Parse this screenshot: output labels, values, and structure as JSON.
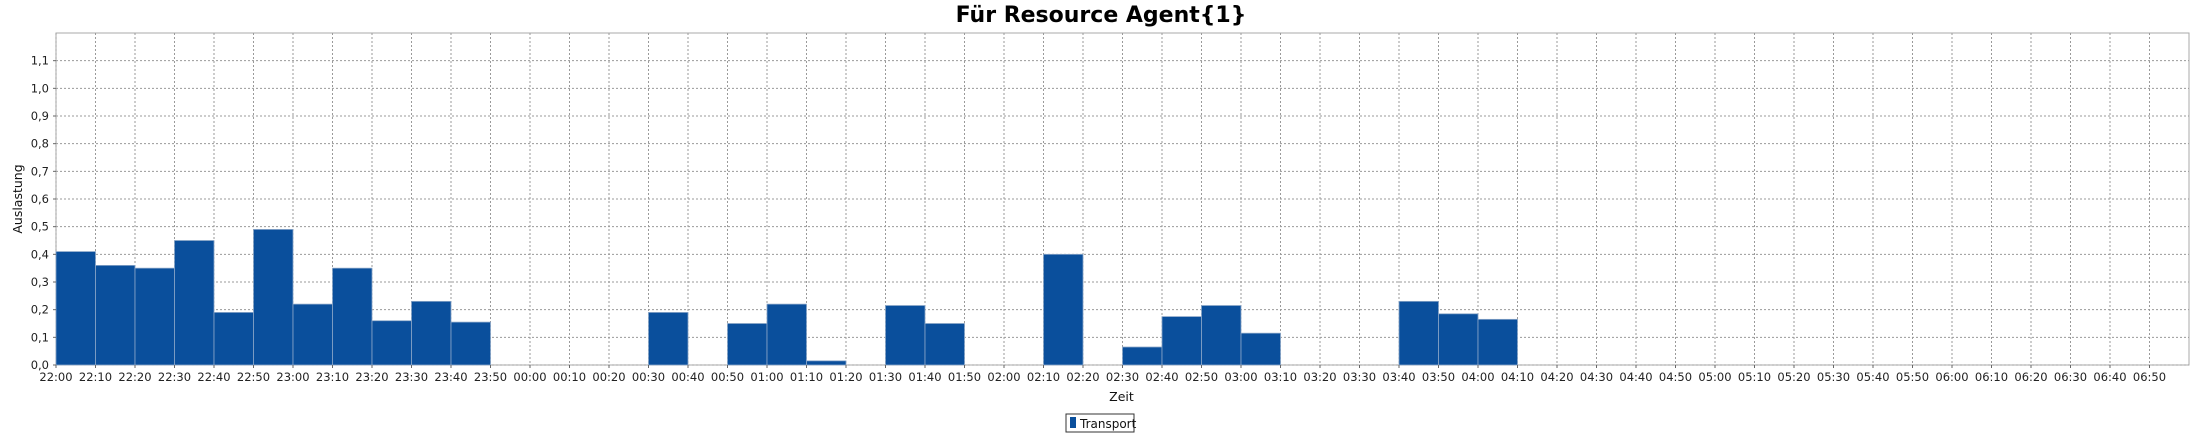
{
  "chart_data": {
    "type": "bar",
    "title": "Für Resource Agent{1}",
    "xlabel": "Zeit",
    "ylabel": "Auslastung",
    "ylim": [
      0,
      1.2
    ],
    "yticks": [
      "0,0",
      "0,1",
      "0,2",
      "0,3",
      "0,4",
      "0,5",
      "0,6",
      "0,7",
      "0,8",
      "0,9",
      "1,0",
      "1,1"
    ],
    "categories": [
      "22:00",
      "22:10",
      "22:20",
      "22:30",
      "22:40",
      "22:50",
      "23:00",
      "23:10",
      "23:20",
      "23:30",
      "23:40",
      "23:50",
      "00:00",
      "00:10",
      "00:20",
      "00:30",
      "00:40",
      "00:50",
      "01:00",
      "01:10",
      "01:20",
      "01:30",
      "01:40",
      "01:50",
      "02:00",
      "02:10",
      "02:20",
      "02:30",
      "02:40",
      "02:50",
      "03:00",
      "03:10",
      "03:20",
      "03:30",
      "03:40",
      "03:50",
      "04:00",
      "04:10",
      "04:20",
      "04:30",
      "04:40",
      "04:50",
      "05:00",
      "05:10",
      "05:20",
      "05:30",
      "05:40",
      "05:50",
      "06:00",
      "06:10",
      "06:20",
      "06:30",
      "06:40",
      "06:50"
    ],
    "series": [
      {
        "name": "Transport",
        "color": "#0a4f9c",
        "values": [
          0.41,
          0.36,
          0.35,
          0.45,
          0.19,
          0.49,
          0.22,
          0.35,
          0.16,
          0.23,
          0.155,
          0,
          0,
          0,
          0,
          0.19,
          0,
          0.15,
          0.22,
          0.015,
          0,
          0.215,
          0.15,
          0,
          0,
          0.4,
          0,
          0.065,
          0.175,
          0.215,
          0.115,
          0,
          0,
          0,
          0.23,
          0.185,
          0.165,
          0,
          0,
          0,
          0,
          0,
          0,
          0,
          0,
          0,
          0,
          0,
          0,
          0,
          0,
          0,
          0,
          0
        ]
      }
    ],
    "grid": true,
    "legend_position": "bottom-center"
  }
}
